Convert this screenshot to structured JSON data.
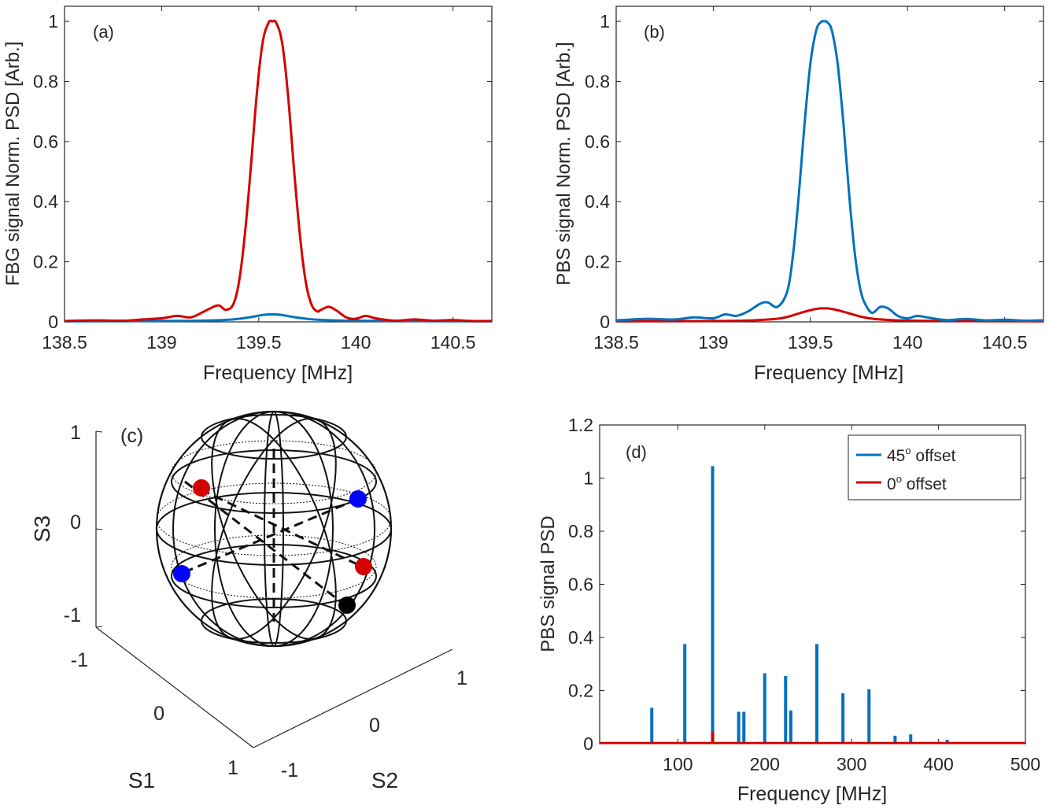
{
  "colors": {
    "blue": "#0072BD",
    "red": "#D40000",
    "axis": "#262626",
    "black": "#000000"
  },
  "chart_data": [
    {
      "type": "line",
      "panel_label": "(a)",
      "xlabel": "Frequency [MHz]",
      "ylabel": "FBG signal Norm. PSD [Arb.]",
      "xlim": [
        138.5,
        140.7
      ],
      "ylim": [
        0,
        1.05
      ],
      "x_ticks": [
        "138.5",
        "139",
        "139.5",
        "140",
        "140.5"
      ],
      "x_tick_values": [
        138.5,
        139,
        139.5,
        140,
        140.5
      ],
      "y_ticks": [
        "0",
        "0.2",
        "0.4",
        "0.6",
        "0.8",
        "1"
      ],
      "y_tick_values": [
        0,
        0.2,
        0.4,
        0.6,
        0.8,
        1
      ],
      "series": [
        {
          "color": "#D40000",
          "center": 139.57,
          "peak": 1.0,
          "x": [
            138.5,
            138.65,
            138.8,
            138.9,
            139.0,
            139.08,
            139.15,
            139.22,
            139.29,
            139.33,
            139.37,
            139.4,
            139.43,
            139.46,
            139.49,
            139.52,
            139.55,
            139.57,
            139.59,
            139.62,
            139.65,
            139.68,
            139.71,
            139.74,
            139.77,
            139.8,
            139.82,
            139.86,
            139.9,
            139.95,
            140.0,
            140.05,
            140.1,
            140.2,
            140.3,
            140.4,
            140.5,
            140.6,
            140.7
          ],
          "y": [
            0.003,
            0.005,
            0.004,
            0.008,
            0.012,
            0.02,
            0.015,
            0.035,
            0.055,
            0.04,
            0.06,
            0.14,
            0.3,
            0.52,
            0.76,
            0.93,
            0.995,
            1.0,
            0.995,
            0.93,
            0.76,
            0.52,
            0.3,
            0.14,
            0.06,
            0.035,
            0.04,
            0.05,
            0.038,
            0.015,
            0.01,
            0.02,
            0.012,
            0.004,
            0.008,
            0.004,
            0.006,
            0.003,
            0.003
          ]
        },
        {
          "color": "#0072BD",
          "center": 139.57,
          "peak": 0.025,
          "x": [
            138.5,
            139.0,
            139.2,
            139.35,
            139.45,
            139.52,
            139.57,
            139.62,
            139.69,
            139.8,
            139.95,
            140.2,
            140.7
          ],
          "y": [
            0.002,
            0.003,
            0.004,
            0.007,
            0.015,
            0.023,
            0.025,
            0.023,
            0.015,
            0.007,
            0.004,
            0.003,
            0.002
          ]
        }
      ]
    },
    {
      "type": "line",
      "panel_label": "(b)",
      "xlabel": "Frequency [MHz]",
      "ylabel": "PBS signal Norm. PSD [Arb.]",
      "xlim": [
        138.5,
        140.7
      ],
      "ylim": [
        0,
        1.05
      ],
      "x_ticks": [
        "138.5",
        "139",
        "139.5",
        "140",
        "140.5"
      ],
      "x_tick_values": [
        138.5,
        139,
        139.5,
        140,
        140.5
      ],
      "y_ticks": [
        "0",
        "0.2",
        "0.4",
        "0.6",
        "0.8",
        "1"
      ],
      "y_tick_values": [
        0,
        0.2,
        0.4,
        0.6,
        0.8,
        1
      ],
      "series": [
        {
          "color": "#0072BD",
          "center": 139.57,
          "peak": 1.0,
          "x": [
            138.5,
            138.65,
            138.8,
            138.9,
            139.0,
            139.06,
            139.12,
            139.18,
            139.24,
            139.28,
            139.33,
            139.38,
            139.41,
            139.44,
            139.47,
            139.5,
            139.53,
            139.555,
            139.57,
            139.585,
            139.61,
            139.64,
            139.67,
            139.7,
            139.73,
            139.76,
            139.79,
            139.82,
            139.86,
            139.9,
            139.95,
            140.0,
            140.05,
            140.1,
            140.2,
            140.3,
            140.4,
            140.5,
            140.6,
            140.7
          ],
          "y": [
            0.005,
            0.01,
            0.008,
            0.015,
            0.012,
            0.025,
            0.02,
            0.035,
            0.06,
            0.065,
            0.05,
            0.1,
            0.22,
            0.42,
            0.66,
            0.86,
            0.97,
            0.998,
            1.0,
            0.998,
            0.97,
            0.86,
            0.66,
            0.42,
            0.22,
            0.1,
            0.05,
            0.03,
            0.05,
            0.045,
            0.02,
            0.012,
            0.02,
            0.015,
            0.006,
            0.01,
            0.005,
            0.007,
            0.004,
            0.005
          ]
        },
        {
          "color": "#D40000",
          "center": 139.57,
          "peak": 0.045,
          "x": [
            138.5,
            139.0,
            139.2,
            139.35,
            139.45,
            139.52,
            139.57,
            139.62,
            139.69,
            139.8,
            139.95,
            140.2,
            140.7
          ],
          "y": [
            0.002,
            0.003,
            0.005,
            0.012,
            0.03,
            0.042,
            0.045,
            0.042,
            0.03,
            0.012,
            0.005,
            0.003,
            0.002
          ]
        }
      ]
    },
    {
      "type": "other",
      "panel_label": "(c)",
      "subtype": "poincare-sphere-3d",
      "axis_labels": {
        "z": "S3",
        "x": "S1",
        "y": "S2"
      },
      "z_ticks": [
        "1",
        "0",
        "-1"
      ],
      "s1_ticks": [
        "-1",
        "0",
        "1"
      ],
      "s2_ticks": [
        "-1",
        "0",
        "1"
      ],
      "points": [
        {
          "color": "#D40000",
          "label": "red-upper-left"
        },
        {
          "color": "#0000FF",
          "label": "blue-upper-right"
        },
        {
          "color": "#0000FF",
          "label": "blue-lower-left"
        },
        {
          "color": "#D40000",
          "label": "red-lower-right"
        },
        {
          "color": "#000000",
          "label": "black-lower-right"
        }
      ]
    },
    {
      "type": "bar",
      "panel_label": "(d)",
      "xlabel": "Frequency [MHz]",
      "ylabel": "PBS signal PSD",
      "xlim": [
        10,
        500
      ],
      "ylim": [
        0,
        1.2
      ],
      "x_ticks": [
        "100",
        "200",
        "300",
        "400",
        "500"
      ],
      "x_tick_values": [
        100,
        200,
        300,
        400,
        500
      ],
      "y_ticks": [
        "0",
        "0.2",
        "0.4",
        "0.6",
        "0.8",
        "1",
        "1.2"
      ],
      "y_tick_values": [
        0,
        0.2,
        0.4,
        0.6,
        0.8,
        1,
        1.2
      ],
      "legend": {
        "position": "top-right"
      },
      "series": [
        {
          "name": "45° offset",
          "legend_base": "45",
          "legend_sup": "o",
          "legend_rest": " offset",
          "color": "#0072BD",
          "x": [
            70,
            108,
            140,
            170,
            176,
            200,
            224,
            230,
            260,
            290,
            320,
            350,
            368,
            410
          ],
          "values": [
            0.135,
            0.375,
            1.045,
            0.12,
            0.12,
            0.265,
            0.255,
            0.125,
            0.375,
            0.19,
            0.205,
            0.03,
            0.035,
            0.015
          ]
        },
        {
          "name": "0° offset",
          "legend_base": "0",
          "legend_sup": "o",
          "legend_rest": " offset",
          "color": "#D40000",
          "x": [
            140
          ],
          "values": [
            0.045
          ]
        }
      ]
    }
  ]
}
